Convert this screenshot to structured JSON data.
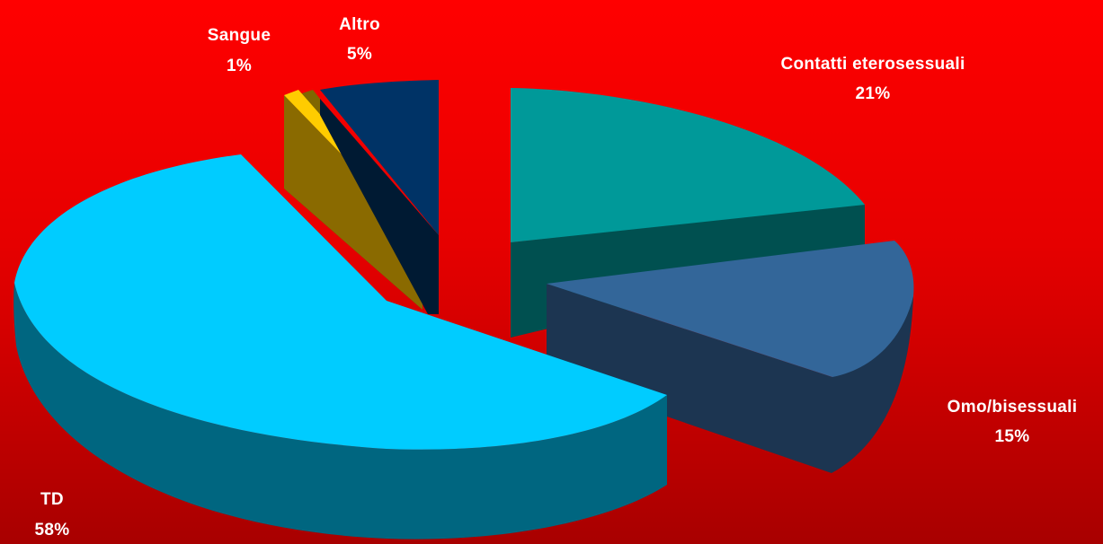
{
  "chart_data": {
    "type": "pie",
    "style": "3d-exploded",
    "title": "",
    "legend": "none",
    "slices": [
      {
        "label": "Contatti eterosessuali",
        "value_label": "21%",
        "value": 21,
        "top_color": "#009999",
        "side_color": "#005050"
      },
      {
        "label": "Omo/bisessuali",
        "value_label": "15%",
        "value": 15,
        "top_color": "#336699",
        "side_color": "#1c3551"
      },
      {
        "label": "TD",
        "value_label": "58%",
        "value": 58,
        "top_color": "#00ccff",
        "side_color": "#006680"
      },
      {
        "label": "Sangue",
        "value_label": "1%",
        "value": 1,
        "top_color": "#ffcc00",
        "side_color": "#806600"
      },
      {
        "label": "Altro",
        "value_label": "5%",
        "value": 5,
        "top_color": "#003366",
        "side_color": "#001a33"
      }
    ],
    "extra_wedge": {
      "top_color": "#8a6a00",
      "side_color": "#5a4500"
    }
  }
}
